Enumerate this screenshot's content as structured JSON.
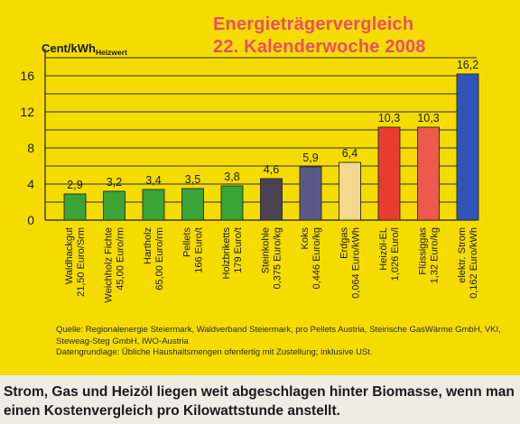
{
  "chart_data": {
    "type": "bar",
    "title_line1": "Energieträgervergleich",
    "title_line2": "22. Kalenderwoche 2008",
    "ylabel": "Cent/kWh",
    "ylabel_sub": "Heizwert",
    "ylim": [
      0,
      18
    ],
    "yticks": [
      0,
      4,
      8,
      12,
      16
    ],
    "ytick_labels": [
      "0",
      "4",
      "8",
      "12",
      "16"
    ],
    "grid": true,
    "categories": [
      {
        "name": "Waldhackgut",
        "unit": "21,50 Euro/Srm"
      },
      {
        "name": "Weichholz Fichte",
        "unit": "45,00 Euro/rm"
      },
      {
        "name": "Hartholz",
        "unit": "65,00 Euro/rm"
      },
      {
        "name": "Pellets",
        "unit": "166 Euro/t"
      },
      {
        "name": "Holzbriketts",
        "unit": "179 Euro/t"
      },
      {
        "name": "Steinkohle",
        "unit": "0,375 Euro/kg"
      },
      {
        "name": "Koks",
        "unit": "0,446 Euro/kg"
      },
      {
        "name": "Erdgas",
        "unit": "0,064 Euro/kWh"
      },
      {
        "name": "Heizöl-EL",
        "unit": "1,026 Euro/l"
      },
      {
        "name": "Flüssiggas",
        "unit": "1,32 Euro/kg"
      },
      {
        "name": "elektr. Strom",
        "unit": "0,162 Euro/kWh"
      }
    ],
    "values": [
      2.9,
      3.2,
      3.4,
      3.5,
      3.8,
      4.6,
      5.9,
      6.4,
      10.3,
      10.3,
      16.2
    ],
    "value_labels": [
      "2,9",
      "3,2",
      "3,4",
      "3,5",
      "3,8",
      "4,6",
      "5,9",
      "6,4",
      "10,3",
      "10,3",
      "16,2"
    ],
    "colors": [
      "#3aa437",
      "#3aa437",
      "#3aa437",
      "#3aa437",
      "#3aa437",
      "#4a4352",
      "#5b5a86",
      "#f4d890",
      "#e83c32",
      "#ec5a4e",
      "#2f55b8"
    ]
  },
  "source_line1": "Quelle: Regionalenergie Steiermark, Waldverband Steiermark, pro Pellets Austria, Steirische GasWärme GmbH, VKI,",
  "source_line2": "Steweag-Steg GmbH, IWO-Austria",
  "source_line3": "Datengrundlage: Übliche Haushaltsmengen ofenfertig mit Zustellung; inklusive USt.",
  "caption": "Strom, Gas und Heizöl liegen weit abgeschlagen hinter Biomasse, wenn man einen Kostenvergleich pro Kilowattstunde anstellt."
}
